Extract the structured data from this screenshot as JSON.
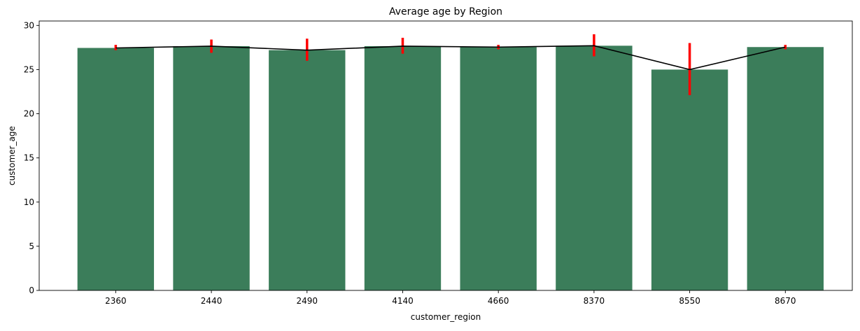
{
  "chart_data": {
    "type": "bar",
    "title": "Average age by Region",
    "xlabel": "customer_region",
    "ylabel": "customer_age",
    "categories": [
      "2360",
      "2440",
      "2490",
      "4140",
      "4660",
      "8370",
      "8550",
      "8670"
    ],
    "values": [
      27.45,
      27.65,
      27.2,
      27.65,
      27.55,
      27.7,
      25.0,
      27.55
    ],
    "error_bars": [
      {
        "low": 27.2,
        "high": 27.8
      },
      {
        "low": 26.9,
        "high": 28.4
      },
      {
        "low": 26.0,
        "high": 28.5
      },
      {
        "low": 26.8,
        "high": 28.6
      },
      {
        "low": 27.3,
        "high": 27.8
      },
      {
        "low": 26.5,
        "high": 29.0
      },
      {
        "low": 22.1,
        "high": 28.0
      },
      {
        "low": 27.3,
        "high": 27.8
      }
    ],
    "ylim": [
      0,
      30.5
    ],
    "yticks": [
      0,
      5,
      10,
      15,
      20,
      25,
      30
    ],
    "grid": false,
    "legend": "none",
    "colors": {
      "bar": "#3b7d5a",
      "error_bar": "#ff0000",
      "line": "#000000",
      "axis": "#000000"
    }
  }
}
